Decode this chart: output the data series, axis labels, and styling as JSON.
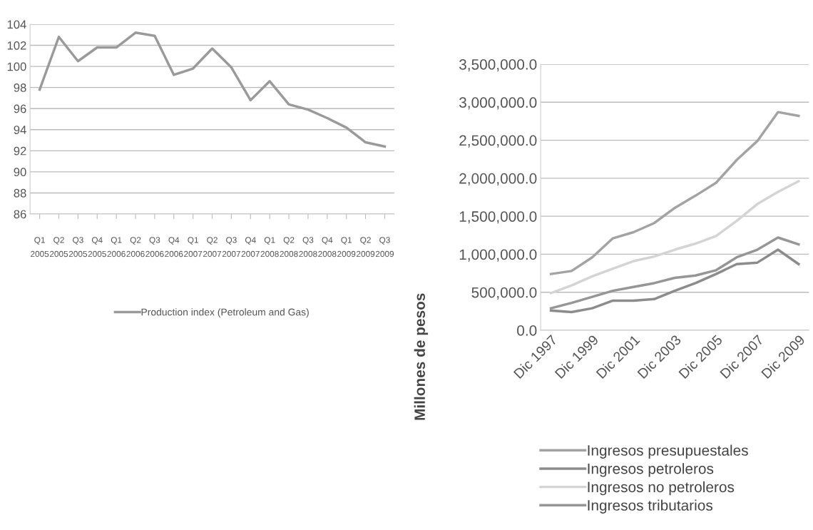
{
  "chart_data": [
    {
      "type": "line",
      "categories": [
        "Q1\n2005",
        "Q2\n2005",
        "Q3\n2005",
        "Q4\n2005",
        "Q1\n2006",
        "Q2\n2006",
        "Q3\n2006",
        "Q4\n2006",
        "Q1\n2007",
        "Q2\n2007",
        "Q3\n2007",
        "Q4\n2007",
        "Q1\n2008",
        "Q2\n2008",
        "Q3\n2008",
        "Q4\n2008",
        "Q1\n2009",
        "Q2\n2009",
        "Q3\n2009"
      ],
      "series": [
        {
          "name": "Production index (Petroleum and Gas)",
          "color": "#9a9a9a",
          "values": [
            97.8,
            102.8,
            100.5,
            101.8,
            101.8,
            103.2,
            102.9,
            99.2,
            99.8,
            101.7,
            99.9,
            96.8,
            98.6,
            96.4,
            95.9,
            95.1,
            94.2,
            92.8,
            92.4
          ]
        }
      ],
      "ylim": [
        86,
        104
      ],
      "yticks": [
        86,
        88,
        90,
        92,
        94,
        96,
        98,
        100,
        102,
        104
      ],
      "grid": "y",
      "legend": "bottom",
      "marker": "none",
      "line_style": "solid"
    },
    {
      "type": "line",
      "ylabel": "Millones de pesos",
      "categories": [
        "Dic 1997",
        null,
        "Dic 1999",
        null,
        "Dic 2001",
        null,
        "Dic 2003",
        null,
        "Dic 2005",
        null,
        "Dic 2007",
        null,
        "Dic 2009"
      ],
      "series": [
        {
          "name": "Ingresos presupuestales",
          "color": "#a3a3a3",
          "values": [
            740000,
            780000,
            960000,
            1210000,
            1290000,
            1410000,
            1610000,
            1770000,
            1940000,
            2240000,
            2490000,
            2870000,
            2820000
          ]
        },
        {
          "name": "Ingresos petroleros",
          "color": "#8c8c8c",
          "values": [
            260000,
            240000,
            290000,
            390000,
            390000,
            410000,
            520000,
            620000,
            740000,
            870000,
            890000,
            1060000,
            870000
          ]
        },
        {
          "name": "Ingresos no petroleros",
          "color": "#d4d4d4",
          "values": [
            490000,
            590000,
            710000,
            810000,
            910000,
            970000,
            1060000,
            1140000,
            1240000,
            1440000,
            1660000,
            1820000,
            1960000
          ]
        },
        {
          "name": "Ingresos tributarios",
          "color": "#969696",
          "values": [
            290000,
            360000,
            440000,
            520000,
            570000,
            620000,
            690000,
            720000,
            790000,
            960000,
            1060000,
            1220000,
            1130000
          ]
        }
      ],
      "ylim": [
        0,
        3500000
      ],
      "yticks": [
        {
          "value": 0,
          "label": "0.0"
        },
        {
          "value": 500000,
          "label": "500,000.0"
        },
        {
          "value": 1000000,
          "label": "1,000,000.0"
        },
        {
          "value": 1500000,
          "label": "1,500,000.0"
        },
        {
          "value": 2000000,
          "label": "2,000,000.0"
        },
        {
          "value": 2500000,
          "label": "2,500,000.0"
        },
        {
          "value": 3000000,
          "label": "3,000,000.0"
        },
        {
          "value": 3500000,
          "label": "3,500,000.0"
        }
      ],
      "grid": "y",
      "legend": "bottom",
      "marker": "none",
      "line_style": "solid"
    }
  ]
}
